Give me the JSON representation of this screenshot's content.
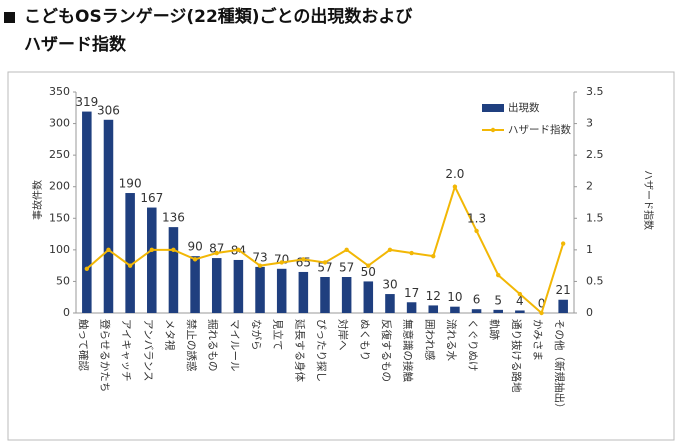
{
  "chart_data": {
    "type": "bar-line",
    "title": [
      "こどもOSランゲージ(22種類)ごとの出現数および",
      "ハザード指数"
    ],
    "ylabel": "事故件数",
    "y2label": "ハザード指数",
    "categories": [
      "触って確認",
      "登らせるかたち",
      "アイキャッチ",
      "アンバランス",
      "メタ視",
      "禁止の誘惑",
      "掘れるもの",
      "マイルール",
      "ながら",
      "見立て",
      "延長する身体",
      "ぴったり探し",
      "対岸へ",
      "ぬくもり",
      "反復するもの",
      "無意識の接触",
      "囲われ感",
      "流れる水",
      "くぐりぬけ",
      "軌跡",
      "通り抜ける路地",
      "かみさま",
      "その他（新規抽出）"
    ],
    "series": [
      {
        "name": "出現数",
        "color": "#1f3f7f",
        "type": "bar",
        "values": [
          319,
          306,
          190,
          167,
          136,
          90,
          87,
          84,
          73,
          70,
          65,
          57,
          57,
          50,
          30,
          17,
          12,
          10,
          6,
          5,
          4,
          0,
          21
        ]
      },
      {
        "name": "ハザード指数",
        "color": "#f2b705",
        "type": "line",
        "axis": "y2",
        "values": [
          0.7,
          1.0,
          0.75,
          1.0,
          1.0,
          0.85,
          0.95,
          1.0,
          0.75,
          0.8,
          0.85,
          0.8,
          1.0,
          0.75,
          1.0,
          0.95,
          0.9,
          2.0,
          1.3,
          0.6,
          0.3,
          0.0,
          1.1
        ],
        "value_labels": [
          null,
          null,
          null,
          null,
          null,
          null,
          null,
          null,
          null,
          null,
          null,
          null,
          null,
          null,
          null,
          null,
          null,
          "2.0",
          "1.3",
          null,
          null,
          null,
          null
        ]
      }
    ],
    "ylim": [
      0,
      350
    ],
    "yticks": [
      0,
      50,
      100,
      150,
      200,
      250,
      300,
      350
    ],
    "y2lim": [
      0,
      3.5
    ],
    "y2ticks": [
      0,
      0.5,
      1,
      1.5,
      2,
      2.5,
      3,
      3.5
    ],
    "legend": "upper right"
  }
}
